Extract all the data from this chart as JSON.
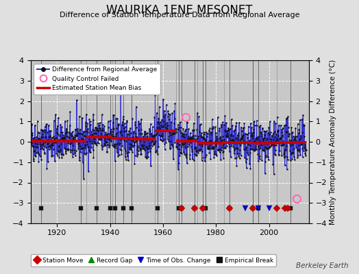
{
  "title": "WAURIKA 1ENE MESONET",
  "subtitle": "Difference of Station Temperature Data from Regional Average",
  "ylabel": "Monthly Temperature Anomaly Difference (°C)",
  "xlim": [
    1910,
    2015
  ],
  "ylim": [
    -4,
    4
  ],
  "yticks": [
    -4,
    -3,
    -2,
    -1,
    0,
    1,
    2,
    3,
    4
  ],
  "xticks": [
    1920,
    1940,
    1960,
    1980,
    2000
  ],
  "bg_color": "#e0e0e0",
  "plot_bg_color": "#c8c8c8",
  "grid_color": "#ffffff",
  "seed": 42,
  "start_year": 1910.0,
  "end_year": 2014.0,
  "bias_segments": [
    {
      "x_start": 1910.0,
      "x_end": 1931.0,
      "bias": 0.05
    },
    {
      "x_start": 1931.0,
      "x_end": 1941.0,
      "bias": 0.25
    },
    {
      "x_start": 1941.0,
      "x_end": 1948.0,
      "bias": 0.18
    },
    {
      "x_start": 1948.0,
      "x_end": 1957.0,
      "bias": 0.12
    },
    {
      "x_start": 1957.0,
      "x_end": 1965.0,
      "bias": 0.55
    },
    {
      "x_start": 1965.0,
      "x_end": 1973.0,
      "bias": 0.05
    },
    {
      "x_start": 1973.0,
      "x_end": 1983.0,
      "bias": -0.08
    },
    {
      "x_start": 1983.0,
      "x_end": 1994.0,
      "bias": -0.03
    },
    {
      "x_start": 1994.0,
      "x_end": 2003.0,
      "bias": -0.08
    },
    {
      "x_start": 2003.0,
      "x_end": 2014.0,
      "bias": -0.03
    }
  ],
  "vertical_line_years": [
    1931,
    1941,
    1948,
    1957,
    1965,
    1973,
    1983,
    1994,
    2003
  ],
  "empirical_break_years": [
    1914,
    1929,
    1935,
    1940,
    1942,
    1945,
    1948,
    1958,
    1966,
    1967,
    1972,
    1975,
    1976,
    1985,
    1994,
    1996,
    2008
  ],
  "station_move_years": [
    1967,
    1972,
    1975,
    1985,
    1994,
    2003,
    2006,
    2007
  ],
  "obs_change_years": [
    1991,
    1996,
    2000
  ],
  "record_gap_years": [],
  "qc_failed_years": [
    1968.5,
    2010.5
  ],
  "qc_failed_vals": [
    1.2,
    -2.8
  ],
  "marker_y": -3.25,
  "anomaly_std": 0.52,
  "line_color": "#3333cc",
  "bias_color": "#cc0000",
  "qc_color": "#ff69b4",
  "station_move_color": "#cc0000",
  "obs_change_color": "#0000cc",
  "record_gap_color": "#008800",
  "empirical_break_color": "#111111",
  "berkeley_earth_text": "Berkeley Earth",
  "legend1_labels": [
    "Difference from Regional Average",
    "Quality Control Failed",
    "Estimated Station Mean Bias"
  ],
  "legend2_labels": [
    "Station Move",
    "Record Gap",
    "Time of Obs. Change",
    "Empirical Break"
  ]
}
